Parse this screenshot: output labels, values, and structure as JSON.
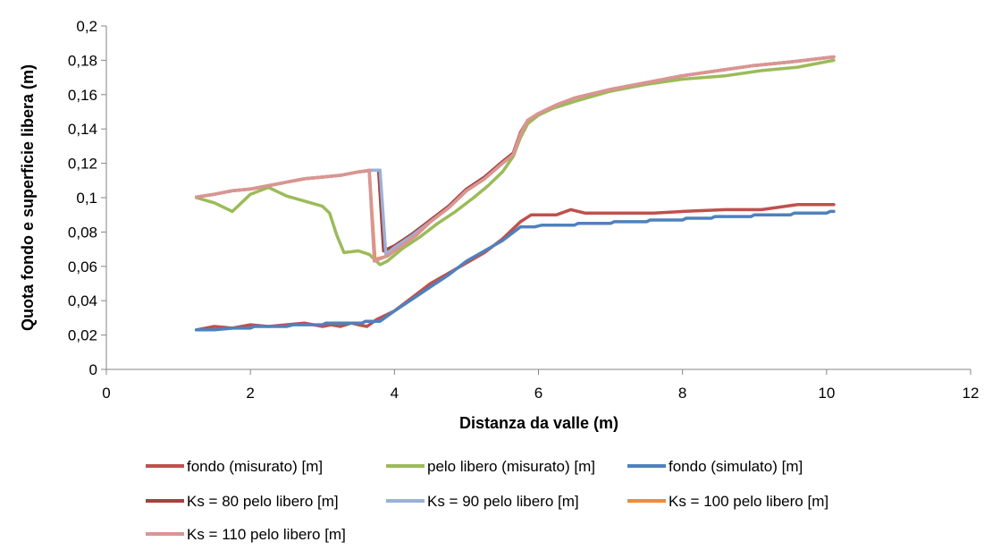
{
  "colors": {
    "fondo_misurato": "#C0504D",
    "pelo_misurato": "#9BBB59",
    "fondo_simulato": "#4F81BD",
    "ks80": "#A5413F",
    "ks90": "#9BB1D5",
    "ks100": "#F08A3A",
    "ks110": "#D99594",
    "axis": "#868686"
  },
  "chart_data": {
    "type": "line",
    "title": "",
    "xlabel": "Distanza da valle (m)",
    "ylabel": "Quota fondo e superficie libera (m)",
    "xlim": [
      0,
      12
    ],
    "ylim": [
      0,
      0.2
    ],
    "x_ticks": [
      "0",
      "2",
      "4",
      "6",
      "8",
      "10",
      "12"
    ],
    "y_ticks": [
      "0",
      "0,02",
      "0,04",
      "0,06",
      "0,08",
      "0,1",
      "0,12",
      "0,14",
      "0,16",
      "0,18",
      "0,2"
    ],
    "grid": false,
    "legend_position": "bottom",
    "series": [
      {
        "name": "fondo (misurato) [m]",
        "color_key": "fondo_misurato",
        "points": [
          [
            1.25,
            0.023
          ],
          [
            1.5,
            0.025
          ],
          [
            1.75,
            0.024
          ],
          [
            2.0,
            0.026
          ],
          [
            2.25,
            0.025
          ],
          [
            2.5,
            0.026
          ],
          [
            2.75,
            0.027
          ],
          [
            3.0,
            0.025
          ],
          [
            3.12,
            0.026
          ],
          [
            3.25,
            0.025
          ],
          [
            3.4,
            0.027
          ],
          [
            3.5,
            0.026
          ],
          [
            3.62,
            0.025
          ],
          [
            3.75,
            0.029
          ],
          [
            4.0,
            0.034
          ],
          [
            4.25,
            0.042
          ],
          [
            4.5,
            0.05
          ],
          [
            4.75,
            0.056
          ],
          [
            5.0,
            0.062
          ],
          [
            5.25,
            0.068
          ],
          [
            5.5,
            0.076
          ],
          [
            5.75,
            0.086
          ],
          [
            5.9,
            0.09
          ],
          [
            6.0,
            0.09
          ],
          [
            6.25,
            0.09
          ],
          [
            6.45,
            0.093
          ],
          [
            6.65,
            0.091
          ],
          [
            7.0,
            0.091
          ],
          [
            7.6,
            0.091
          ],
          [
            8.0,
            0.092
          ],
          [
            8.6,
            0.093
          ],
          [
            9.1,
            0.093
          ],
          [
            9.6,
            0.096
          ],
          [
            10.1,
            0.096
          ]
        ]
      },
      {
        "name": "pelo libero (misurato) [m]",
        "color_key": "pelo_misurato",
        "points": [
          [
            1.25,
            0.1
          ],
          [
            1.5,
            0.097
          ],
          [
            1.75,
            0.092
          ],
          [
            2.0,
            0.102
          ],
          [
            2.25,
            0.106
          ],
          [
            2.5,
            0.101
          ],
          [
            2.75,
            0.098
          ],
          [
            3.0,
            0.095
          ],
          [
            3.1,
            0.091
          ],
          [
            3.2,
            0.078
          ],
          [
            3.3,
            0.068
          ],
          [
            3.5,
            0.069
          ],
          [
            3.65,
            0.067
          ],
          [
            3.8,
            0.061
          ],
          [
            3.9,
            0.063
          ],
          [
            4.1,
            0.07
          ],
          [
            4.35,
            0.077
          ],
          [
            4.6,
            0.085
          ],
          [
            4.85,
            0.092
          ],
          [
            5.1,
            0.1
          ],
          [
            5.3,
            0.107
          ],
          [
            5.5,
            0.115
          ],
          [
            5.65,
            0.124
          ],
          [
            5.75,
            0.135
          ],
          [
            5.85,
            0.143
          ],
          [
            6.0,
            0.148
          ],
          [
            6.2,
            0.152
          ],
          [
            6.5,
            0.156
          ],
          [
            6.75,
            0.159
          ],
          [
            7.0,
            0.162
          ],
          [
            7.5,
            0.166
          ],
          [
            8.0,
            0.169
          ],
          [
            8.6,
            0.171
          ],
          [
            9.1,
            0.174
          ],
          [
            9.6,
            0.176
          ],
          [
            10.1,
            0.18
          ]
        ]
      },
      {
        "name": "fondo (simulato) [m]",
        "color_key": "fondo_simulato",
        "points": [
          [
            1.25,
            0.023
          ],
          [
            1.5,
            0.023
          ],
          [
            1.75,
            0.024
          ],
          [
            2.0,
            0.024
          ],
          [
            2.05,
            0.025
          ],
          [
            2.25,
            0.025
          ],
          [
            2.5,
            0.025
          ],
          [
            2.6,
            0.026
          ],
          [
            3.0,
            0.026
          ],
          [
            3.05,
            0.027
          ],
          [
            3.55,
            0.027
          ],
          [
            3.6,
            0.028
          ],
          [
            3.8,
            0.028
          ],
          [
            4.0,
            0.034
          ],
          [
            4.25,
            0.041
          ],
          [
            4.5,
            0.048
          ],
          [
            4.75,
            0.055
          ],
          [
            5.0,
            0.063
          ],
          [
            5.25,
            0.069
          ],
          [
            5.5,
            0.075
          ],
          [
            5.75,
            0.083
          ],
          [
            5.95,
            0.083
          ],
          [
            6.05,
            0.084
          ],
          [
            6.5,
            0.084
          ],
          [
            6.55,
            0.085
          ],
          [
            7.0,
            0.085
          ],
          [
            7.05,
            0.086
          ],
          [
            7.5,
            0.086
          ],
          [
            7.55,
            0.087
          ],
          [
            8.0,
            0.087
          ],
          [
            8.05,
            0.088
          ],
          [
            8.4,
            0.088
          ],
          [
            8.45,
            0.089
          ],
          [
            8.95,
            0.089
          ],
          [
            9.0,
            0.09
          ],
          [
            9.5,
            0.09
          ],
          [
            9.55,
            0.091
          ],
          [
            10.0,
            0.091
          ],
          [
            10.05,
            0.092
          ],
          [
            10.1,
            0.092
          ]
        ]
      },
      {
        "name": "Ks = 80 pelo libero [m]",
        "color_key": "ks80",
        "points": [
          [
            1.25,
            0.1003
          ],
          [
            1.5,
            0.102
          ],
          [
            1.75,
            0.104
          ],
          [
            2.0,
            0.105
          ],
          [
            2.25,
            0.107
          ],
          [
            2.5,
            0.109
          ],
          [
            2.75,
            0.111
          ],
          [
            3.0,
            0.112
          ],
          [
            3.25,
            0.113
          ],
          [
            3.5,
            0.115
          ],
          [
            3.7,
            0.116
          ],
          [
            3.78,
            0.116
          ],
          [
            3.85,
            0.069
          ],
          [
            4.0,
            0.072
          ],
          [
            4.25,
            0.079
          ],
          [
            4.5,
            0.087
          ],
          [
            4.75,
            0.095
          ],
          [
            5.0,
            0.105
          ],
          [
            5.25,
            0.112
          ],
          [
            5.5,
            0.121
          ],
          [
            5.65,
            0.126
          ],
          [
            5.75,
            0.138
          ],
          [
            5.85,
            0.145
          ],
          [
            6.0,
            0.149
          ],
          [
            6.25,
            0.154
          ],
          [
            6.5,
            0.158
          ],
          [
            7.0,
            0.163
          ],
          [
            7.5,
            0.167
          ],
          [
            8.0,
            0.171
          ],
          [
            8.5,
            0.174
          ],
          [
            9.0,
            0.177
          ],
          [
            9.5,
            0.179
          ],
          [
            10.1,
            0.182
          ]
        ]
      },
      {
        "name": "Ks = 90 pelo libero [m]",
        "color_key": "ks90",
        "points": [
          [
            1.25,
            0.1003
          ],
          [
            1.5,
            0.102
          ],
          [
            1.75,
            0.104
          ],
          [
            2.0,
            0.105
          ],
          [
            2.25,
            0.107
          ],
          [
            2.5,
            0.109
          ],
          [
            2.75,
            0.111
          ],
          [
            3.0,
            0.112
          ],
          [
            3.25,
            0.113
          ],
          [
            3.5,
            0.115
          ],
          [
            3.7,
            0.116
          ],
          [
            3.8,
            0.116
          ],
          [
            3.88,
            0.067
          ],
          [
            4.0,
            0.071
          ],
          [
            4.25,
            0.078
          ],
          [
            4.5,
            0.086
          ],
          [
            4.75,
            0.094
          ],
          [
            5.0,
            0.104
          ],
          [
            5.25,
            0.111
          ],
          [
            5.5,
            0.12
          ],
          [
            5.65,
            0.125
          ],
          [
            5.75,
            0.137
          ],
          [
            5.85,
            0.145
          ],
          [
            6.0,
            0.149
          ],
          [
            6.25,
            0.154
          ],
          [
            6.5,
            0.158
          ],
          [
            7.0,
            0.163
          ],
          [
            7.5,
            0.167
          ],
          [
            8.0,
            0.171
          ],
          [
            8.5,
            0.174
          ],
          [
            9.0,
            0.177
          ],
          [
            9.5,
            0.179
          ],
          [
            10.1,
            0.182
          ]
        ]
      },
      {
        "name": "Ks = 100 pelo libero [m]",
        "color_key": "ks100",
        "points": [
          [
            1.25,
            0.1003
          ],
          [
            1.5,
            0.102
          ],
          [
            1.75,
            0.104
          ],
          [
            2.0,
            0.105
          ],
          [
            2.25,
            0.107
          ],
          [
            2.5,
            0.109
          ],
          [
            2.75,
            0.111
          ],
          [
            3.0,
            0.112
          ],
          [
            3.25,
            0.113
          ],
          [
            3.5,
            0.115
          ],
          [
            3.65,
            0.116
          ],
          [
            3.73,
            0.064
          ],
          [
            3.9,
            0.066
          ],
          [
            4.1,
            0.072
          ],
          [
            4.3,
            0.078
          ],
          [
            4.5,
            0.086
          ],
          [
            4.75,
            0.094
          ],
          [
            5.0,
            0.104
          ],
          [
            5.25,
            0.111
          ],
          [
            5.5,
            0.12
          ],
          [
            5.65,
            0.125
          ],
          [
            5.75,
            0.137
          ],
          [
            5.85,
            0.145
          ],
          [
            6.0,
            0.149
          ],
          [
            6.25,
            0.154
          ],
          [
            6.5,
            0.158
          ],
          [
            7.0,
            0.163
          ],
          [
            7.5,
            0.167
          ],
          [
            8.0,
            0.171
          ],
          [
            8.5,
            0.174
          ],
          [
            9.0,
            0.177
          ],
          [
            9.5,
            0.179
          ],
          [
            10.1,
            0.182
          ]
        ]
      },
      {
        "name": "Ks = 110 pelo libero [m]",
        "color_key": "ks110",
        "points": [
          [
            1.25,
            0.1003
          ],
          [
            1.5,
            0.102
          ],
          [
            1.75,
            0.104
          ],
          [
            2.0,
            0.105
          ],
          [
            2.25,
            0.107
          ],
          [
            2.5,
            0.109
          ],
          [
            2.75,
            0.111
          ],
          [
            3.0,
            0.112
          ],
          [
            3.25,
            0.113
          ],
          [
            3.5,
            0.115
          ],
          [
            3.65,
            0.116
          ],
          [
            3.72,
            0.063
          ],
          [
            3.9,
            0.066
          ],
          [
            4.1,
            0.072
          ],
          [
            4.3,
            0.078
          ],
          [
            4.5,
            0.086
          ],
          [
            4.75,
            0.094
          ],
          [
            5.0,
            0.104
          ],
          [
            5.25,
            0.111
          ],
          [
            5.5,
            0.12
          ],
          [
            5.65,
            0.125
          ],
          [
            5.75,
            0.137
          ],
          [
            5.85,
            0.145
          ],
          [
            6.0,
            0.149
          ],
          [
            6.25,
            0.154
          ],
          [
            6.5,
            0.158
          ],
          [
            7.0,
            0.163
          ],
          [
            7.5,
            0.167
          ],
          [
            8.0,
            0.171
          ],
          [
            8.5,
            0.174
          ],
          [
            9.0,
            0.177
          ],
          [
            9.5,
            0.179
          ],
          [
            10.1,
            0.182
          ]
        ]
      }
    ]
  }
}
